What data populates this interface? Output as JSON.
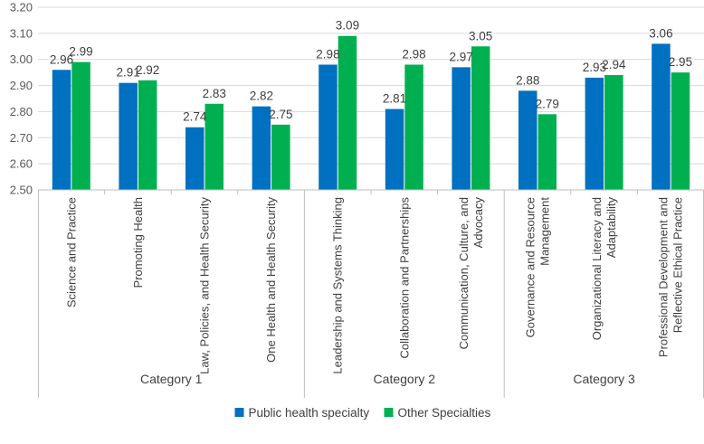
{
  "chart_data": {
    "type": "bar",
    "title": "",
    "xlabel": "",
    "ylabel": "",
    "ylim": [
      2.5,
      3.2
    ],
    "yticks": [
      "2.50",
      "2.60",
      "2.70",
      "2.80",
      "2.90",
      "3.00",
      "3.10",
      "3.20"
    ],
    "grid": true,
    "legend_position": "bottom",
    "categories": [
      [
        "Science and Practice"
      ],
      [
        "Promoting Health"
      ],
      [
        "Law, Policies, and Health Security"
      ],
      [
        "One Health and Health Security"
      ],
      [
        "Leadership and Systems Thinking"
      ],
      [
        "Collaboration and Partnerships"
      ],
      [
        "Communication, Culture, and",
        "Advocacy"
      ],
      [
        "Governance and Resource",
        "Management"
      ],
      [
        "Organizational Literacy and",
        "Adaptability"
      ],
      [
        "Professional Development and",
        "Reflective Ethical Practice"
      ]
    ],
    "groups": [
      {
        "label": "Category 1",
        "count": 4
      },
      {
        "label": "Category 2",
        "count": 3
      },
      {
        "label": "Category 3",
        "count": 3
      }
    ],
    "series": [
      {
        "name": "Public health specialty",
        "color": "#0070C0",
        "values": [
          2.96,
          2.91,
          2.74,
          2.82,
          2.98,
          2.81,
          2.97,
          2.88,
          2.93,
          3.06
        ],
        "labels": [
          "2.96",
          "2.91",
          "2.74",
          "2.82",
          "2.98",
          "2.81",
          "2.97",
          "2.88",
          "2.93",
          "3.06"
        ]
      },
      {
        "name": "Other Specialties",
        "color": "#00B050",
        "values": [
          2.99,
          2.92,
          2.83,
          2.75,
          3.09,
          2.98,
          3.05,
          2.79,
          2.94,
          2.95
        ],
        "labels": [
          "2.99",
          "2.92",
          "2.83",
          "2.75",
          "3.09",
          "2.98",
          "3.05",
          "2.79",
          "2.94",
          "2.95"
        ]
      }
    ]
  }
}
